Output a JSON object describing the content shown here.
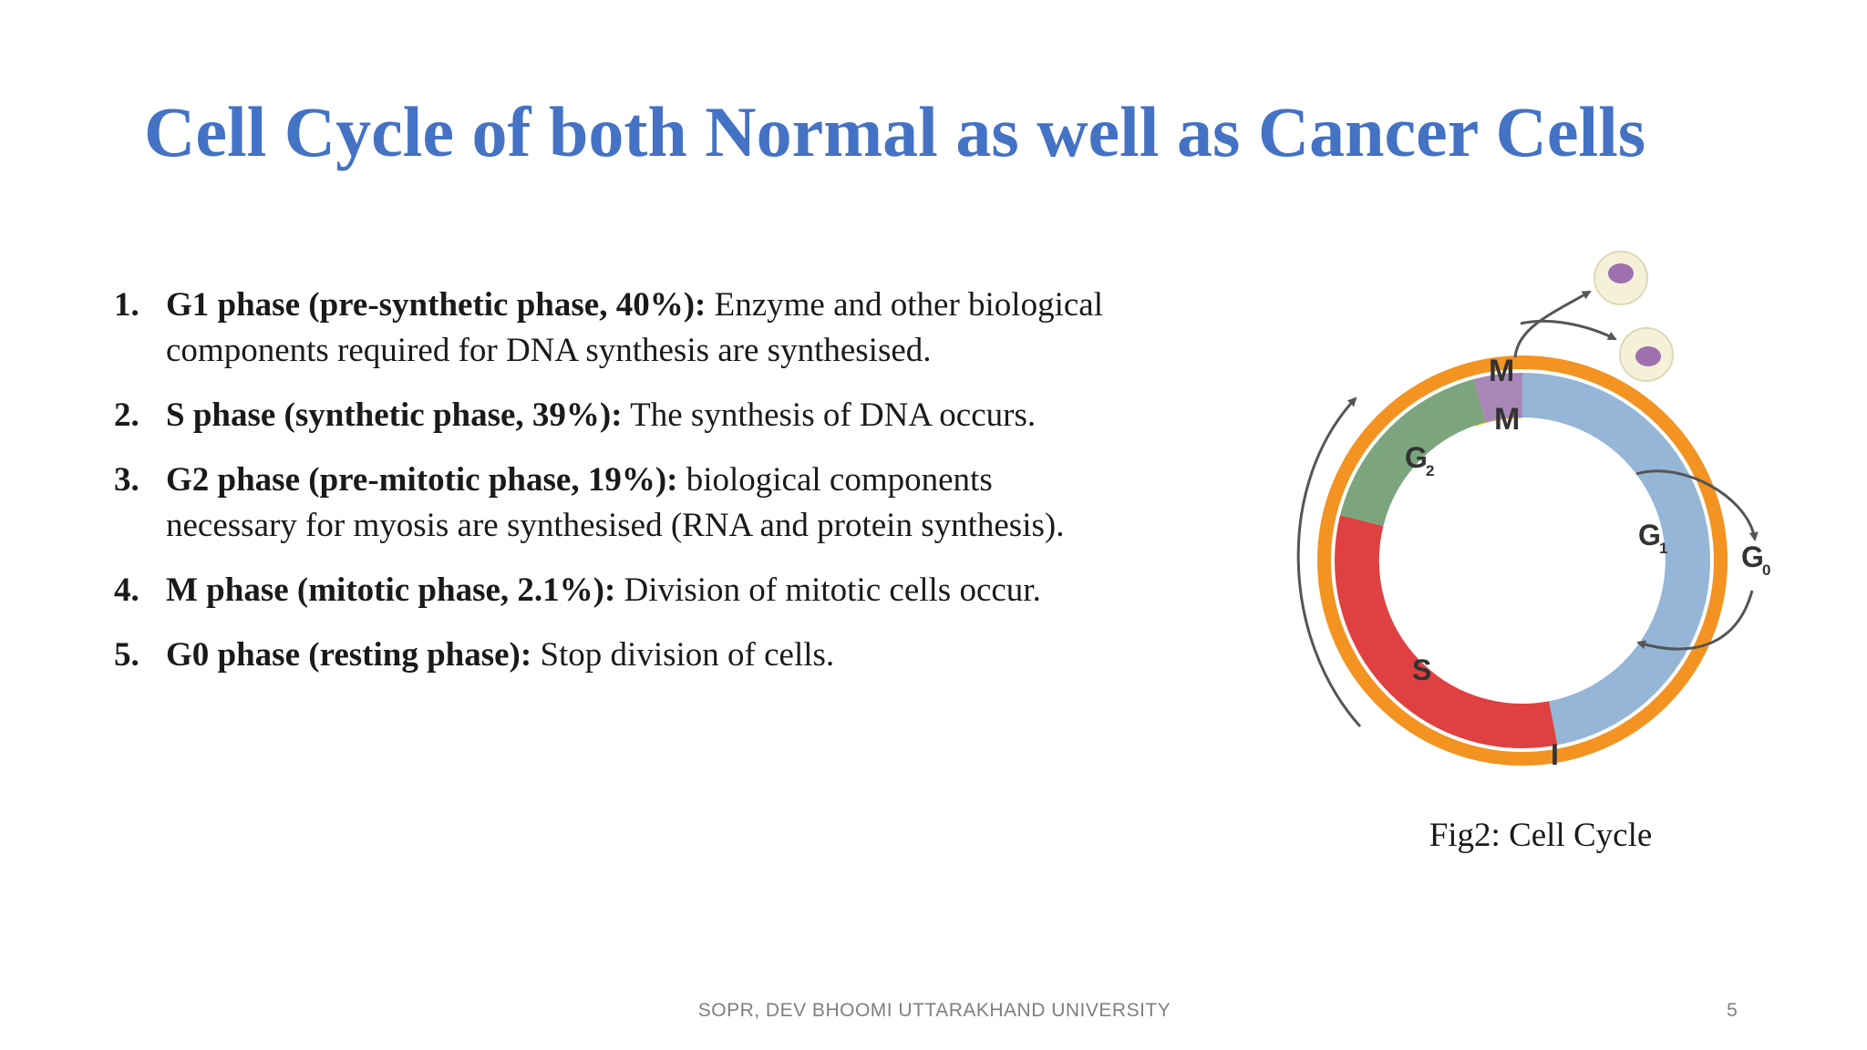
{
  "slide": {
    "title": "Cell Cycle of both Normal as well as Cancer Cells",
    "items": [
      {
        "number": "1.",
        "heading": "G1 phase (pre-synthetic phase, 40%):",
        "text": " Enzyme and other biological components required for DNA synthesis are synthesised."
      },
      {
        "number": "2.",
        "heading": "S phase (synthetic phase, 39%):",
        "text": " The synthesis of DNA occurs."
      },
      {
        "number": "3.",
        "heading": "G2 phase (pre-mitotic phase, 19%):",
        "text": " biological components necessary for myosis are synthesised (RNA and protein synthesis)."
      },
      {
        "number": "4.",
        "heading": "M phase (mitotic phase, 2.1%):",
        "text": " Division of mitotic cells occur."
      },
      {
        "number": "5.",
        "heading": "G0 phase (resting phase):",
        "text": " Stop division of cells."
      }
    ],
    "figure": {
      "caption": "Fig2: Cell Cycle",
      "labels": {
        "outer_m": "M",
        "inner_m": "M",
        "g1_main": "G",
        "g1_sub": "1",
        "g2_main": "G",
        "g2_sub": "2",
        "s": "S",
        "i": "I",
        "g0_main": "G",
        "g0_sub": "0"
      },
      "colors": {
        "interphase_ring": "#F39321",
        "m_outer": "#F7D117",
        "m_inner": "#A887B8",
        "g1": "#95B6D6",
        "s": "#DF4142",
        "g2": "#7CA57D",
        "arrow": "#555555",
        "cell_body": "#F4F1D8",
        "cell_nucleus": "#9E71AE"
      }
    },
    "footer": "SOPR, DEV BHOOMI UTTARAKHAND UNIVERSITY",
    "page_number": "5"
  }
}
